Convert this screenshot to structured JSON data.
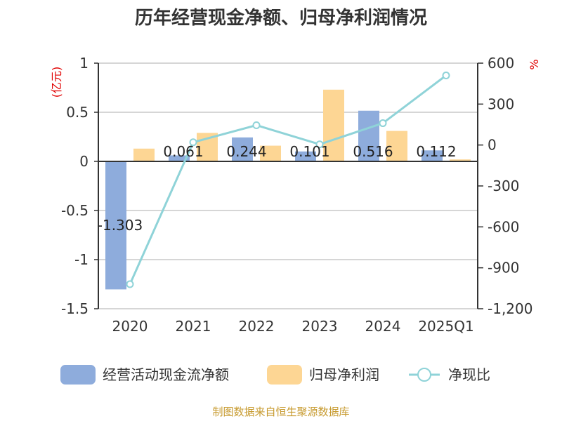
{
  "chart_data": {
    "type": "bar",
    "title": "历年经营现金净额、归母净利润情况",
    "categories": [
      "2020",
      "2021",
      "2022",
      "2023",
      "2024",
      "2025Q1"
    ],
    "left_unit": "(亿元)",
    "right_unit": "%",
    "left_ticks": [
      "1",
      "0.5",
      "0",
      "-0.5",
      "-1",
      "-1.5"
    ],
    "right_ticks": [
      "600",
      "300",
      "0",
      "-300",
      "-600",
      "-900",
      "-1,200"
    ],
    "ylim_left": [
      -1.5,
      1
    ],
    "ylim_right": [
      -1200,
      600
    ],
    "grid": true,
    "legend_position": "bottom",
    "series": [
      {
        "name": "经营活动现金流净额",
        "type": "bar",
        "axis": "left",
        "color": "#8eacdc",
        "values": [
          -1.303,
          0.061,
          0.244,
          0.101,
          0.516,
          0.112
        ],
        "labels": [
          "-1.303",
          "0.061",
          "0.244",
          "0.101",
          "0.516",
          "0.112"
        ]
      },
      {
        "name": "归母净利润",
        "type": "bar",
        "axis": "left",
        "color": "#fdd694",
        "values": [
          0.13,
          0.29,
          0.16,
          0.73,
          0.31,
          0.02
        ]
      },
      {
        "name": "净现比",
        "type": "line",
        "axis": "right",
        "color": "#8fd3d8",
        "values": [
          -1020,
          20,
          145,
          5,
          160,
          510
        ]
      }
    ],
    "source": "制图数据来自恒生聚源数据库"
  }
}
